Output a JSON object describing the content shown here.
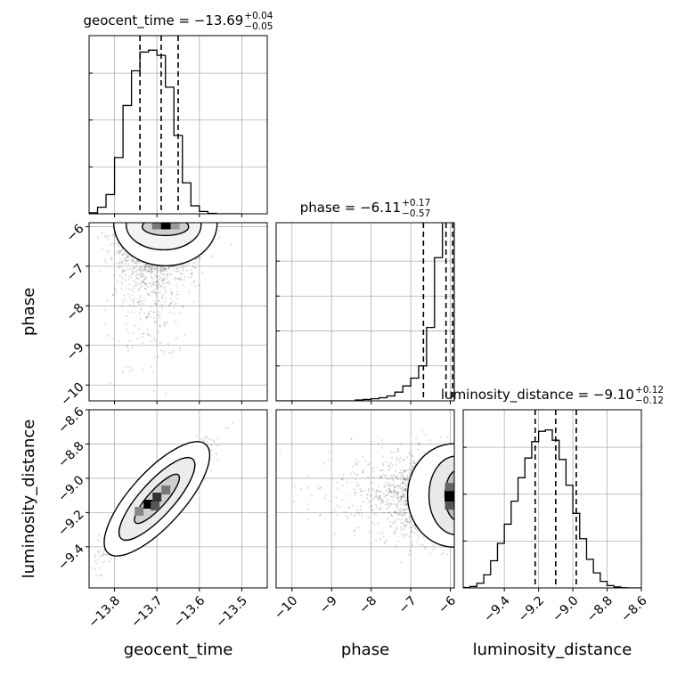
{
  "chart_data": {
    "type": "corner",
    "parameters": [
      {
        "key": "geocent_time",
        "label": "geocent_time",
        "range": [
          -13.86,
          -13.44
        ],
        "ticks": [
          -13.8,
          -13.7,
          -13.6,
          -13.5
        ],
        "tick_labels": [
          "−13.8",
          "−13.7",
          "−13.6",
          "−13.5"
        ],
        "title": {
          "text": "geocent_time = −13.69",
          "sup": "+0.04",
          "sub": "−0.05"
        },
        "quantiles": [
          -13.74,
          -13.69,
          -13.65
        ]
      },
      {
        "key": "phase",
        "label": "phase",
        "range": [
          -10.4,
          -5.9
        ],
        "ticks": [
          -10,
          -9,
          -8,
          -7,
          -6
        ],
        "tick_labels": [
          "−10",
          "−9",
          "−8",
          "−7",
          "−6"
        ],
        "title": {
          "text": "phase = −6.11",
          "sup": "+0.17",
          "sub": "−0.57"
        },
        "quantiles": [
          -6.68,
          -6.11,
          -5.94
        ]
      },
      {
        "key": "luminosity_distance",
        "label": "luminosity_distance",
        "range": [
          -9.64,
          -8.6
        ],
        "ticks": [
          -9.4,
          -9.2,
          -9.0,
          -8.8,
          -8.6
        ],
        "tick_labels": [
          "−9.4",
          "−9.2",
          "−9.0",
          "−8.8",
          "−8.6"
        ],
        "title": {
          "text": "luminosity_distance = −9.10",
          "sup": "+0.12",
          "sub": "−0.12"
        },
        "quantiles": [
          -9.22,
          -9.1,
          -8.98
        ]
      }
    ],
    "hist1d": [
      {
        "param": "geocent_time",
        "edges": [
          -13.86,
          -13.84,
          -13.82,
          -13.8,
          -13.78,
          -13.76,
          -13.74,
          -13.72,
          -13.7,
          -13.68,
          -13.66,
          -13.64,
          -13.62,
          -13.6,
          -13.58,
          -13.56,
          -13.54,
          -13.52,
          -13.5
        ],
        "counts": [
          0.2,
          1.4,
          4.1,
          12.0,
          23.1,
          30.5,
          34.5,
          34.9,
          33.8,
          27.0,
          16.7,
          6.6,
          1.7,
          0.5,
          0.1,
          0,
          0,
          0
        ]
      },
      {
        "param": "phase",
        "edges": [
          -10.4,
          -10.2,
          -10.0,
          -9.8,
          -9.6,
          -9.4,
          -9.2,
          -9.0,
          -8.8,
          -8.6,
          -8.4,
          -8.2,
          -8.0,
          -7.8,
          -7.6,
          -7.4,
          -7.2,
          -7.0,
          -6.8,
          -6.6,
          -6.4,
          -6.2,
          -6.05,
          -5.9
        ],
        "counts": [
          0,
          0,
          0,
          0,
          0,
          0,
          0,
          0,
          0,
          0,
          0.05,
          0.08,
          0.12,
          0.18,
          0.28,
          0.5,
          0.85,
          1.3,
          2.0,
          4.2,
          8.2,
          16.0,
          16.0
        ]
      },
      {
        "param": "luminosity_distance",
        "edges": [
          -9.64,
          -9.6,
          -9.56,
          -9.52,
          -9.48,
          -9.44,
          -9.4,
          -9.36,
          -9.32,
          -9.28,
          -9.24,
          -9.2,
          -9.16,
          -9.12,
          -9.08,
          -9.04,
          -9.0,
          -8.96,
          -8.92,
          -8.88,
          -8.84,
          -8.8,
          -8.76,
          -8.72,
          -8.68,
          -8.64,
          -8.6
        ],
        "counts": [
          0.1,
          0.3,
          1.0,
          2.8,
          5.8,
          9.5,
          13.6,
          18.5,
          23.5,
          27.7,
          31.2,
          33.4,
          33.7,
          31.5,
          27.4,
          21.9,
          15.9,
          10.5,
          6.1,
          3.2,
          1.4,
          0.5,
          0.2,
          0.05,
          0,
          0
        ]
      }
    ],
    "hist2d": [
      {
        "x": "geocent_time",
        "y": "phase",
        "peak": [
          -13.68,
          -6.0
        ]
      },
      {
        "x": "geocent_time",
        "y": "luminosity_distance",
        "peak": [
          -13.7,
          -9.12
        ]
      },
      {
        "x": "phase",
        "y": "luminosity_distance",
        "peak": [
          -6.0,
          -9.1
        ]
      }
    ],
    "grid": true
  }
}
